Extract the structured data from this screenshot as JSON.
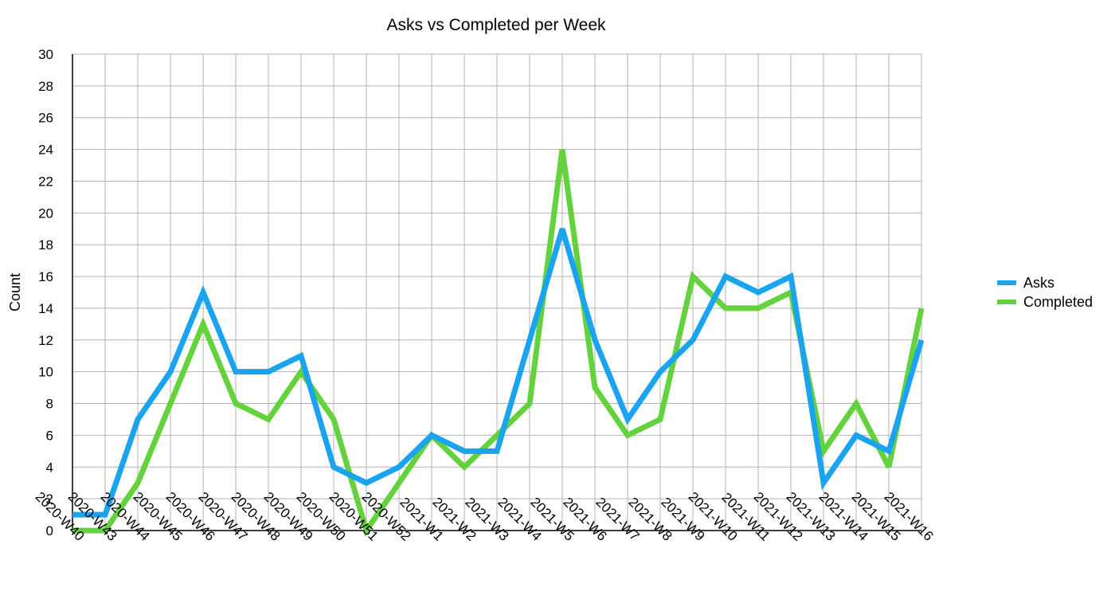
{
  "chart_data": {
    "type": "line",
    "title": "Asks vs Completed per Week",
    "xlabel": "",
    "ylabel": "Count",
    "ylim": [
      0,
      30
    ],
    "ytick_step": 2,
    "grid": true,
    "legend_position": "right",
    "categories": [
      "2020-W40",
      "2020-W43",
      "2020-W44",
      "2020-W45",
      "2020-W46",
      "2020-W47",
      "2020-W48",
      "2020-W49",
      "2020-W50",
      "2020-W51",
      "2020-W52",
      "2021-W1",
      "2021-W2",
      "2021-W3",
      "2021-W4",
      "2021-W5",
      "2021-W6",
      "2021-W7",
      "2021-W8",
      "2021-W9",
      "2021-W10",
      "2021-W11",
      "2021-W12",
      "2021-W13",
      "2021-W14",
      "2021-W15",
      "2021-W16"
    ],
    "series": [
      {
        "name": "Asks",
        "color": "#1aa3ee",
        "values": [
          1,
          1,
          7,
          10,
          15,
          10,
          10,
          11,
          4,
          3,
          4,
          6,
          5,
          5,
          12,
          19,
          12,
          7,
          10,
          12,
          16,
          15,
          16,
          3,
          6,
          5,
          12
        ]
      },
      {
        "name": "Completed",
        "color": "#64d23c",
        "values": [
          0,
          0,
          3,
          8,
          13,
          8,
          7,
          10,
          7,
          0,
          3,
          6,
          4,
          6,
          8,
          24,
          9,
          6,
          7,
          16,
          14,
          14,
          15,
          5,
          8,
          4,
          14
        ]
      }
    ]
  }
}
